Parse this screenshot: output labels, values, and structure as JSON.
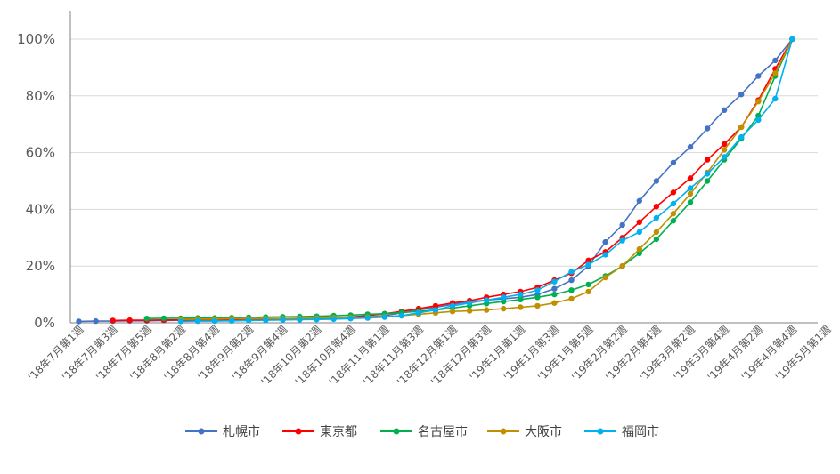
{
  "chart_data": {
    "type": "line",
    "title": "",
    "xlabel": "",
    "ylabel": "",
    "ylim": [
      0,
      1.0
    ],
    "y_ticks": [
      "0%",
      "20%",
      "40%",
      "60%",
      "80%",
      "100%"
    ],
    "grid": "horizontal",
    "legend_position": "bottom",
    "x_tick_labels": [
      "'18年7月第1週",
      "'18年7月第3週",
      "'18年7月第5週",
      "'18年8月第2週",
      "'18年8月第4週",
      "'18年9月第2週",
      "'18年9月第4週",
      "'18年10月第2週",
      "'18年10月第4週",
      "'18年11月第1週",
      "'18年11月第3週",
      "'18年12月第1週",
      "'18年12月第3週",
      "'19年1月第1週",
      "'19年1月第3週",
      "'19年1月第5週",
      "'19年2月第2週",
      "'19年2月第4週",
      "'19年3月第2週",
      "'19年3月第4週",
      "'19年4月第2週",
      "'19年4月第4週",
      "'19年5月第1週"
    ],
    "x_count": 44,
    "series": [
      {
        "name": "札幌市",
        "color": "#4472C4",
        "values": [
          0.005,
          0.006,
          0.006,
          0.007,
          0.007,
          0.008,
          0.009,
          0.009,
          0.01,
          0.01,
          0.011,
          0.011,
          0.012,
          0.012,
          0.013,
          0.014,
          0.016,
          0.02,
          0.025,
          0.035,
          0.045,
          0.055,
          0.065,
          0.075,
          0.08,
          0.085,
          0.09,
          0.1,
          0.12,
          0.15,
          0.2,
          0.285,
          0.345,
          0.43,
          0.5,
          0.565,
          0.62,
          0.685,
          0.75,
          0.805,
          0.87,
          0.925,
          1.0
        ]
      },
      {
        "name": "東京都",
        "color": "#FF0000",
        "values": [
          0.008,
          0.009,
          0.009,
          0.01,
          0.01,
          0.011,
          0.011,
          0.012,
          0.013,
          0.013,
          0.014,
          0.015,
          0.016,
          0.018,
          0.02,
          0.025,
          0.032,
          0.04,
          0.05,
          0.06,
          0.07,
          0.078,
          0.09,
          0.1,
          0.11,
          0.125,
          0.15,
          0.175,
          0.22,
          0.25,
          0.3,
          0.355,
          0.41,
          0.46,
          0.51,
          0.575,
          0.63,
          0.69,
          0.785,
          0.895,
          1.0
        ]
      },
      {
        "name": "名古屋市",
        "color": "#00B050",
        "values": [
          0.015,
          0.016,
          0.016,
          0.017,
          0.017,
          0.018,
          0.019,
          0.02,
          0.021,
          0.022,
          0.023,
          0.025,
          0.027,
          0.03,
          0.032,
          0.036,
          0.04,
          0.045,
          0.052,
          0.06,
          0.068,
          0.075,
          0.082,
          0.09,
          0.1,
          0.115,
          0.135,
          0.165,
          0.2,
          0.245,
          0.295,
          0.36,
          0.425,
          0.5,
          0.575,
          0.65,
          0.73,
          0.87,
          1.0
        ]
      },
      {
        "name": "大阪市",
        "color": "#C09000",
        "values": [
          0.012,
          0.013,
          0.013,
          0.014,
          0.014,
          0.015,
          0.015,
          0.016,
          0.017,
          0.018,
          0.019,
          0.02,
          0.022,
          0.025,
          0.03,
          0.035,
          0.04,
          0.042,
          0.045,
          0.05,
          0.055,
          0.06,
          0.07,
          0.085,
          0.11,
          0.16,
          0.2,
          0.26,
          0.32,
          0.385,
          0.455,
          0.53,
          0.61,
          0.69,
          0.78,
          0.88,
          1.0
        ]
      },
      {
        "name": "福岡市",
        "color": "#00B0F0",
        "values": [
          0.005,
          0.006,
          0.006,
          0.007,
          0.008,
          0.009,
          0.01,
          0.011,
          0.012,
          0.013,
          0.015,
          0.017,
          0.02,
          0.025,
          0.035,
          0.045,
          0.06,
          0.07,
          0.08,
          0.09,
          0.1,
          0.115,
          0.145,
          0.18,
          0.205,
          0.24,
          0.29,
          0.32,
          0.37,
          0.42,
          0.475,
          0.525,
          0.585,
          0.655,
          0.715,
          0.79,
          1.0
        ]
      }
    ]
  }
}
